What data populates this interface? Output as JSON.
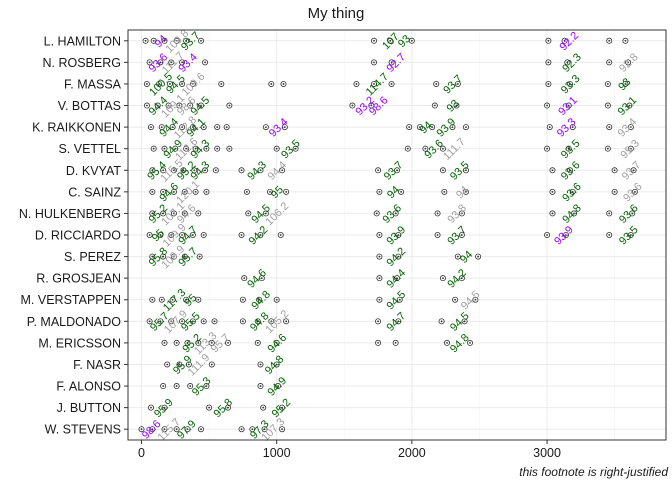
{
  "chart_data": {
    "type": "scatter",
    "title": "My thing",
    "footnote": "this footnote is right-justified",
    "xlabel": "",
    "ylabel": "",
    "xlim": [
      -100,
      3880
    ],
    "xticks": [
      0,
      1000,
      2000,
      3000
    ],
    "grid": true,
    "colors": {
      "purple": "#9900ff",
      "green": "#006400",
      "grey": "#a0a0a0",
      "point": "#333333",
      "grid": "#ebebeb",
      "frame": "#333333"
    },
    "categories": [
      "L. HAMILTON",
      "N. ROSBERG",
      "F. MASSA",
      "V. BOTTAS",
      "K. RAIKKONEN",
      "S. VETTEL",
      "D. KVYAT",
      "C. SAINZ",
      "N. HULKENBERG",
      "D. RICCIARDO",
      "S. PEREZ",
      "R. GROSJEAN",
      "M. VERSTAPPEN",
      "P. MALDONADO",
      "M. ERICSSON",
      "F. NASR",
      "F. ALONSO",
      "J. BUTTON",
      "W. STEVENS"
    ],
    "points": [
      {
        "driver": "L. HAMILTON",
        "x": [
          30,
          90,
          170,
          260,
          330,
          440,
          1720,
          1840,
          2000,
          3010,
          3130,
          3460,
          3580
        ]
      },
      {
        "driver": "N. ROSBERG",
        "x": [
          60,
          140,
          220,
          300,
          470,
          1720,
          1850,
          3010,
          3150,
          3460,
          3600
        ]
      },
      {
        "driver": "F. MASSA",
        "x": [
          40,
          130,
          210,
          300,
          380,
          590,
          960,
          1050,
          1590,
          1720,
          1850,
          2180,
          2340,
          3010,
          3170,
          3450,
          3580
        ]
      },
      {
        "driver": "V. BOTTAS",
        "x": [
          40,
          120,
          200,
          280,
          360,
          440,
          650,
          1560,
          1700,
          2170,
          2330,
          3000,
          3160,
          3450,
          3610
        ]
      },
      {
        "driver": "K. RAIKKONEN",
        "x": [
          70,
          150,
          230,
          300,
          380,
          460,
          560,
          630,
          920,
          1060,
          1980,
          2060,
          2150,
          2300,
          2400,
          3020,
          3190,
          3460,
          3620
        ]
      },
      {
        "driver": "S. VETTEL",
        "x": [
          90,
          170,
          250,
          330,
          400,
          480,
          560,
          650,
          1000,
          1140,
          1970,
          2100,
          2230,
          3000,
          3160,
          3450,
          3620
        ]
      },
      {
        "driver": "D. KVYAT",
        "x": [
          80,
          160,
          240,
          310,
          390,
          470,
          550,
          740,
          880,
          1040,
          1750,
          1890,
          2230,
          2400,
          3040,
          3170,
          3500,
          3640
        ]
      },
      {
        "driver": "C. SAINZ",
        "x": [
          80,
          160,
          240,
          320,
          400,
          480,
          780,
          950,
          1070,
          1760,
          1920,
          2240,
          2400,
          3040,
          3190,
          3500,
          3650
        ]
      },
      {
        "driver": "N. HULKENBERG",
        "x": [
          80,
          160,
          240,
          320,
          420,
          790,
          920,
          1740,
          1880,
          2190,
          2370,
          3040,
          3200,
          3460,
          3630
        ]
      },
      {
        "driver": "D. RICCIARDO",
        "x": [
          60,
          140,
          220,
          300,
          380,
          460,
          740,
          880,
          1030,
          1760,
          1900,
          2190,
          2370,
          3000,
          3140,
          3460,
          3620
        ]
      },
      {
        "driver": "S. PEREZ",
        "x": [
          80,
          160,
          240,
          320,
          430,
          1760,
          1900,
          2340,
          2490
        ]
      },
      {
        "driver": "R. GROSJEAN",
        "x": [
          760,
          890,
          1760,
          1890,
          2230,
          2370
        ]
      },
      {
        "driver": "M. VERSTAPPEN",
        "x": [
          80,
          150,
          230,
          330,
          420,
          750,
          870,
          1000,
          1760,
          1910,
          2320,
          2470
        ]
      },
      {
        "driver": "P. MALDONADO",
        "x": [
          60,
          140,
          220,
          300,
          380,
          460,
          540,
          750,
          860,
          960,
          1070,
          1750,
          1900,
          2220,
          2390
        ]
      },
      {
        "driver": "M. ERICSSON",
        "x": [
          170,
          260,
          340,
          420,
          520,
          640,
          860,
          1000,
          1750,
          1880,
          2260,
          2430
        ]
      },
      {
        "driver": "F. NASR",
        "x": [
          190,
          280,
          350,
          520,
          880,
          1000
        ]
      },
      {
        "driver": "F. ALONSO",
        "x": [
          160,
          260,
          360,
          480,
          880,
          1010
        ]
      },
      {
        "driver": "J. BUTTON",
        "x": [
          70,
          170,
          500,
          640,
          900,
          1040
        ]
      },
      {
        "driver": "W. STEVENS",
        "x": [
          0,
          80,
          170,
          260,
          340,
          440,
          740,
          820,
          910,
          1040
        ]
      }
    ],
    "labels": [
      {
        "driver": "L. HAMILTON",
        "x": 140,
        "text": "94",
        "color": "purple"
      },
      {
        "driver": "L. HAMILTON",
        "x": 260,
        "text": "109.8",
        "color": "grey"
      },
      {
        "driver": "L. HAMILTON",
        "x": 360,
        "text": "93.7",
        "color": "green"
      },
      {
        "driver": "L. HAMILTON",
        "x": 1840,
        "text": "107",
        "color": "green"
      },
      {
        "driver": "L. HAMILTON",
        "x": 1940,
        "text": "93",
        "color": "green"
      },
      {
        "driver": "L. HAMILTON",
        "x": 3160,
        "text": "92.2",
        "color": "purple"
      },
      {
        "driver": "N. ROSBERG",
        "x": 120,
        "text": "93.6",
        "color": "purple"
      },
      {
        "driver": "N. ROSBERG",
        "x": 230,
        "text": "111.7",
        "color": "grey"
      },
      {
        "driver": "N. ROSBERG",
        "x": 340,
        "text": "93.4",
        "color": "purple"
      },
      {
        "driver": "N. ROSBERG",
        "x": 1880,
        "text": "92.7",
        "color": "purple"
      },
      {
        "driver": "N. ROSBERG",
        "x": 3180,
        "text": "92.3",
        "color": "green"
      },
      {
        "driver": "N. ROSBERG",
        "x": 3600,
        "text": "92.8",
        "color": "grey"
      },
      {
        "driver": "F. MASSA",
        "x": 140,
        "text": "100.5",
        "color": "green"
      },
      {
        "driver": "F. MASSA",
        "x": 250,
        "text": "94.5",
        "color": "green"
      },
      {
        "driver": "F. MASSA",
        "x": 380,
        "text": "109.6",
        "color": "grey"
      },
      {
        "driver": "F. MASSA",
        "x": 1740,
        "text": "114.7",
        "color": "green"
      },
      {
        "driver": "F. MASSA",
        "x": 2300,
        "text": "93.7",
        "color": "green"
      },
      {
        "driver": "F. MASSA",
        "x": 3170,
        "text": "93.3",
        "color": "green"
      },
      {
        "driver": "F. MASSA",
        "x": 3570,
        "text": "93",
        "color": "green"
      },
      {
        "driver": "V. BOTTAS",
        "x": 120,
        "text": "94.4",
        "color": "green"
      },
      {
        "driver": "V. BOTTAS",
        "x": 230,
        "text": "109.1",
        "color": "grey"
      },
      {
        "driver": "V. BOTTAS",
        "x": 330,
        "text": "98.6",
        "color": "grey"
      },
      {
        "driver": "V. BOTTAS",
        "x": 430,
        "text": "94.5",
        "color": "green"
      },
      {
        "driver": "V. BOTTAS",
        "x": 1650,
        "text": "93.2",
        "color": "purple"
      },
      {
        "driver": "V. BOTTAS",
        "x": 1750,
        "text": "98.6",
        "color": "purple"
      },
      {
        "driver": "V. BOTTAS",
        "x": 2300,
        "text": "93",
        "color": "green"
      },
      {
        "driver": "V. BOTTAS",
        "x": 3150,
        "text": "93.1",
        "color": "purple"
      },
      {
        "driver": "V. BOTTAS",
        "x": 3590,
        "text": "93.1",
        "color": "green"
      },
      {
        "driver": "K. RAIKKONEN",
        "x": 200,
        "text": "94.4",
        "color": "green"
      },
      {
        "driver": "K. RAIKKONEN",
        "x": 320,
        "text": "112.8",
        "color": "grey"
      },
      {
        "driver": "K. RAIKKONEN",
        "x": 400,
        "text": "94.1",
        "color": "green"
      },
      {
        "driver": "K. RAIKKONEN",
        "x": 1010,
        "text": "93.4",
        "color": "purple"
      },
      {
        "driver": "K. RAIKKONEN",
        "x": 2100,
        "text": "94",
        "color": "green"
      },
      {
        "driver": "K. RAIKKONEN",
        "x": 2250,
        "text": "93.9",
        "color": "green"
      },
      {
        "driver": "K. RAIKKONEN",
        "x": 3140,
        "text": "93.3",
        "color": "purple"
      },
      {
        "driver": "K. RAIKKONEN",
        "x": 3590,
        "text": "93.4",
        "color": "grey"
      },
      {
        "driver": "S. VETTEL",
        "x": 230,
        "text": "94.9",
        "color": "green"
      },
      {
        "driver": "S. VETTEL",
        "x": 330,
        "text": "112.6",
        "color": "grey"
      },
      {
        "driver": "S. VETTEL",
        "x": 430,
        "text": "94.3",
        "color": "green"
      },
      {
        "driver": "S. VETTEL",
        "x": 1100,
        "text": "93.5",
        "color": "green"
      },
      {
        "driver": "S. VETTEL",
        "x": 2160,
        "text": "93.6",
        "color": "green"
      },
      {
        "driver": "S. VETTEL",
        "x": 2310,
        "text": "111.7",
        "color": "grey"
      },
      {
        "driver": "S. VETTEL",
        "x": 3170,
        "text": "93.5",
        "color": "green"
      },
      {
        "driver": "S. VETTEL",
        "x": 3610,
        "text": "95.3",
        "color": "grey"
      },
      {
        "driver": "D. KVYAT",
        "x": 110,
        "text": "95.4",
        "color": "green"
      },
      {
        "driver": "D. KVYAT",
        "x": 220,
        "text": "115.5",
        "color": "grey"
      },
      {
        "driver": "D. KVYAT",
        "x": 330,
        "text": "95.2",
        "color": "green"
      },
      {
        "driver": "D. KVYAT",
        "x": 430,
        "text": "94.3",
        "color": "green"
      },
      {
        "driver": "D. KVYAT",
        "x": 850,
        "text": "94.3",
        "color": "green"
      },
      {
        "driver": "D. KVYAT",
        "x": 1000,
        "text": "94.4",
        "color": "grey"
      },
      {
        "driver": "D. KVYAT",
        "x": 1860,
        "text": "93.7",
        "color": "green"
      },
      {
        "driver": "D. KVYAT",
        "x": 2350,
        "text": "93.5",
        "color": "green"
      },
      {
        "driver": "D. KVYAT",
        "x": 3170,
        "text": "93.6",
        "color": "green"
      },
      {
        "driver": "D. KVYAT",
        "x": 3620,
        "text": "93.7",
        "color": "grey"
      },
      {
        "driver": "C. SAINZ",
        "x": 200,
        "text": "94.6",
        "color": "green"
      },
      {
        "driver": "C. SAINZ",
        "x": 340,
        "text": "120.1",
        "color": "grey"
      },
      {
        "driver": "C. SAINZ",
        "x": 1000,
        "text": "95",
        "color": "green"
      },
      {
        "driver": "C. SAINZ",
        "x": 1860,
        "text": "94",
        "color": "green"
      },
      {
        "driver": "C. SAINZ",
        "x": 2370,
        "text": "94",
        "color": "grey"
      },
      {
        "driver": "C. SAINZ",
        "x": 3180,
        "text": "93.6",
        "color": "green"
      },
      {
        "driver": "C. SAINZ",
        "x": 3630,
        "text": "93.6",
        "color": "grey"
      },
      {
        "driver": "N. HULKENBERG",
        "x": 120,
        "text": "95.2",
        "color": "green"
      },
      {
        "driver": "N. HULKENBERG",
        "x": 230,
        "text": "107.1",
        "color": "grey"
      },
      {
        "driver": "N. HULKENBERG",
        "x": 330,
        "text": "94.6",
        "color": "grey"
      },
      {
        "driver": "N. HULKENBERG",
        "x": 880,
        "text": "94.5",
        "color": "green"
      },
      {
        "driver": "N. HULKENBERG",
        "x": 1000,
        "text": "106.2",
        "color": "grey"
      },
      {
        "driver": "N. HULKENBERG",
        "x": 1850,
        "text": "93.6",
        "color": "green"
      },
      {
        "driver": "N. HULKENBERG",
        "x": 2330,
        "text": "93.8",
        "color": "grey"
      },
      {
        "driver": "N. HULKENBERG",
        "x": 3180,
        "text": "94.8",
        "color": "green"
      },
      {
        "driver": "N. HULKENBERG",
        "x": 3600,
        "text": "93.6",
        "color": "green"
      },
      {
        "driver": "D. RICCIARDO",
        "x": 120,
        "text": "95",
        "color": "green"
      },
      {
        "driver": "D. RICCIARDO",
        "x": 240,
        "text": "109.9",
        "color": "grey"
      },
      {
        "driver": "D. RICCIARDO",
        "x": 340,
        "text": "94.7",
        "color": "green"
      },
      {
        "driver": "D. RICCIARDO",
        "x": 860,
        "text": "94.2",
        "color": "green"
      },
      {
        "driver": "D. RICCIARDO",
        "x": 1880,
        "text": "93.9",
        "color": "green"
      },
      {
        "driver": "D. RICCIARDO",
        "x": 2330,
        "text": "93.7",
        "color": "green"
      },
      {
        "driver": "D. RICCIARDO",
        "x": 3120,
        "text": "93.9",
        "color": "purple"
      },
      {
        "driver": "D. RICCIARDO",
        "x": 3600,
        "text": "93.5",
        "color": "green"
      },
      {
        "driver": "S. PEREZ",
        "x": 120,
        "text": "95.8",
        "color": "green"
      },
      {
        "driver": "S. PEREZ",
        "x": 230,
        "text": "109.9",
        "color": "grey"
      },
      {
        "driver": "S. PEREZ",
        "x": 340,
        "text": "95.7",
        "color": "green"
      },
      {
        "driver": "S. PEREZ",
        "x": 1880,
        "text": "94.2",
        "color": "green"
      },
      {
        "driver": "S. PEREZ",
        "x": 2400,
        "text": "94",
        "color": "green"
      },
      {
        "driver": "R. GROSJEAN",
        "x": 850,
        "text": "94.6",
        "color": "green"
      },
      {
        "driver": "R. GROSJEAN",
        "x": 1880,
        "text": "94.4",
        "color": "green"
      },
      {
        "driver": "R. GROSJEAN",
        "x": 2330,
        "text": "94.2",
        "color": "green"
      },
      {
        "driver": "M. VERSTAPPEN",
        "x": 240,
        "text": "117.3",
        "color": "green"
      },
      {
        "driver": "M. VERSTAPPEN",
        "x": 360,
        "text": "95",
        "color": "green"
      },
      {
        "driver": "M. VERSTAPPEN",
        "x": 880,
        "text": "94.8",
        "color": "green"
      },
      {
        "driver": "M. VERSTAPPEN",
        "x": 1880,
        "text": "94.5",
        "color": "green"
      },
      {
        "driver": "M. VERSTAPPEN",
        "x": 2430,
        "text": "94.5",
        "color": "grey"
      },
      {
        "driver": "P. MALDONADO",
        "x": 130,
        "text": "95.7",
        "color": "green"
      },
      {
        "driver": "P. MALDONADO",
        "x": 250,
        "text": "107.9",
        "color": "grey"
      },
      {
        "driver": "P. MALDONADO",
        "x": 360,
        "text": "95.5",
        "color": "green"
      },
      {
        "driver": "P. MALDONADO",
        "x": 870,
        "text": "94.8",
        "color": "green"
      },
      {
        "driver": "P. MALDONADO",
        "x": 1000,
        "text": "105.2",
        "color": "grey"
      },
      {
        "driver": "P. MALDONADO",
        "x": 1880,
        "text": "94.7",
        "color": "green"
      },
      {
        "driver": "P. MALDONADO",
        "x": 2350,
        "text": "94.5",
        "color": "green"
      },
      {
        "driver": "M. ERICSSON",
        "x": 370,
        "text": "95.2",
        "color": "green"
      },
      {
        "driver": "M. ERICSSON",
        "x": 470,
        "text": "113.3",
        "color": "grey"
      },
      {
        "driver": "M. ERICSSON",
        "x": 580,
        "text": "95.7",
        "color": "grey"
      },
      {
        "driver": "M. ERICSSON",
        "x": 1000,
        "text": "94.6",
        "color": "green"
      },
      {
        "driver": "M. ERICSSON",
        "x": 2350,
        "text": "94.8",
        "color": "green"
      },
      {
        "driver": "F. NASR",
        "x": 300,
        "text": "95.9",
        "color": "green"
      },
      {
        "driver": "F. NASR",
        "x": 420,
        "text": "111.9",
        "color": "grey"
      },
      {
        "driver": "F. NASR",
        "x": 980,
        "text": "94.8",
        "color": "green"
      },
      {
        "driver": "F. ALONSO",
        "x": 440,
        "text": "95.3",
        "color": "green"
      },
      {
        "driver": "F. ALONSO",
        "x": 1000,
        "text": "94.9",
        "color": "green"
      },
      {
        "driver": "J. BUTTON",
        "x": 160,
        "text": "95.9",
        "color": "green"
      },
      {
        "driver": "J. BUTTON",
        "x": 600,
        "text": "95.8",
        "color": "green"
      },
      {
        "driver": "J. BUTTON",
        "x": 1030,
        "text": "95.2",
        "color": "green"
      },
      {
        "driver": "W. STEVENS",
        "x": 70,
        "text": "98.6",
        "color": "purple"
      },
      {
        "driver": "W. STEVENS",
        "x": 200,
        "text": "115.7",
        "color": "grey"
      },
      {
        "driver": "W. STEVENS",
        "x": 330,
        "text": "97.9",
        "color": "green"
      },
      {
        "driver": "W. STEVENS",
        "x": 870,
        "text": "97.3",
        "color": "green"
      },
      {
        "driver": "W. STEVENS",
        "x": 970,
        "text": "107.3",
        "color": "grey"
      }
    ]
  }
}
